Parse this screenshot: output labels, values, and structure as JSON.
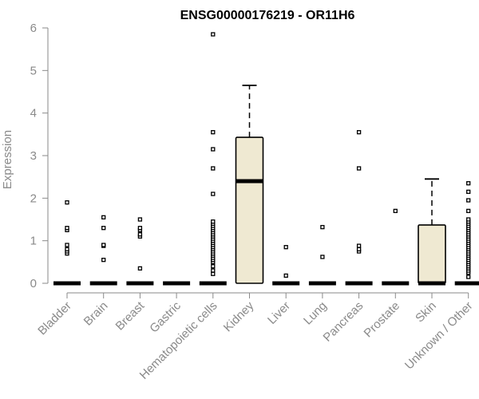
{
  "chart_data": {
    "type": "box",
    "title": "ENSG00000176219 - OR11H6",
    "xlabel": "",
    "ylabel": "Expression",
    "ylim": [
      0,
      6
    ],
    "yticks": [
      0,
      1,
      2,
      3,
      4,
      5,
      6
    ],
    "grid": false,
    "colors": {
      "box_fill": "#efe9d2",
      "stroke": "#000000",
      "axis": "#8a8a8a"
    },
    "categories": [
      "Bladder",
      "Brain",
      "Breast",
      "Gastric",
      "Hematopoietic cells",
      "Kidney",
      "Liver",
      "Lung",
      "Pancreas",
      "Prostate",
      "Skin",
      "Unknown / Other"
    ],
    "boxes": [
      {
        "category": "Bladder",
        "q1": 0,
        "median": 0,
        "q3": 0,
        "whisker_low": 0,
        "whisker_high": 0,
        "outliers": [
          0.7,
          0.75,
          0.8,
          0.9,
          1.25,
          1.3,
          1.9
        ]
      },
      {
        "category": "Brain",
        "q1": 0,
        "median": 0,
        "q3": 0,
        "whisker_low": 0,
        "whisker_high": 0,
        "outliers": [
          0.55,
          0.88,
          0.9,
          1.3,
          1.55
        ]
      },
      {
        "category": "Breast",
        "q1": 0,
        "median": 0,
        "q3": 0,
        "whisker_low": 0,
        "whisker_high": 0,
        "outliers": [
          0.35,
          1.1,
          1.15,
          1.25,
          1.3,
          1.5
        ]
      },
      {
        "category": "Gastric",
        "q1": 0,
        "median": 0,
        "q3": 0,
        "whisker_low": 0,
        "whisker_high": 0,
        "outliers": []
      },
      {
        "category": "Hematopoietic cells",
        "q1": 0,
        "median": 0,
        "q3": 0,
        "whisker_low": 0,
        "whisker_high": 0,
        "outliers": [
          0.22,
          0.3,
          0.4,
          0.5,
          0.55,
          0.6,
          0.65,
          0.7,
          0.75,
          0.8,
          0.85,
          0.9,
          0.95,
          1.0,
          1.05,
          1.1,
          1.15,
          1.2,
          1.25,
          1.3,
          1.35,
          1.4,
          1.45,
          2.1,
          2.7,
          3.15,
          3.55,
          5.85
        ]
      },
      {
        "category": "Kidney",
        "q1": 0,
        "median": 2.4,
        "q3": 3.43,
        "whisker_low": 0,
        "whisker_high": 4.65,
        "outliers": []
      },
      {
        "category": "Liver",
        "q1": 0,
        "median": 0,
        "q3": 0,
        "whisker_low": 0,
        "whisker_high": 0,
        "outliers": [
          0.18,
          0.85
        ]
      },
      {
        "category": "Lung",
        "q1": 0,
        "median": 0,
        "q3": 0,
        "whisker_low": 0,
        "whisker_high": 0,
        "outliers": [
          0.62,
          1.32
        ]
      },
      {
        "category": "Pancreas",
        "q1": 0,
        "median": 0,
        "q3": 0,
        "whisker_low": 0,
        "whisker_high": 0,
        "outliers": [
          0.75,
          0.8,
          0.88,
          2.7,
          3.55
        ]
      },
      {
        "category": "Prostate",
        "q1": 0,
        "median": 0,
        "q3": 0,
        "whisker_low": 0,
        "whisker_high": 0,
        "outliers": [
          1.7
        ]
      },
      {
        "category": "Skin",
        "q1": 0,
        "median": 0,
        "q3": 1.37,
        "whisker_low": 0,
        "whisker_high": 2.45,
        "outliers": []
      },
      {
        "category": "Unknown / Other",
        "q1": 0,
        "median": 0,
        "q3": 0,
        "whisker_low": 0,
        "whisker_high": 0,
        "outliers": [
          0.15,
          0.25,
          0.3,
          0.35,
          0.4,
          0.45,
          0.5,
          0.55,
          0.6,
          0.65,
          0.7,
          0.75,
          0.8,
          0.85,
          0.9,
          0.95,
          1.0,
          1.05,
          1.1,
          1.15,
          1.2,
          1.25,
          1.3,
          1.35,
          1.4,
          1.45,
          1.5,
          1.7,
          1.95,
          2.15,
          2.35
        ]
      }
    ]
  }
}
